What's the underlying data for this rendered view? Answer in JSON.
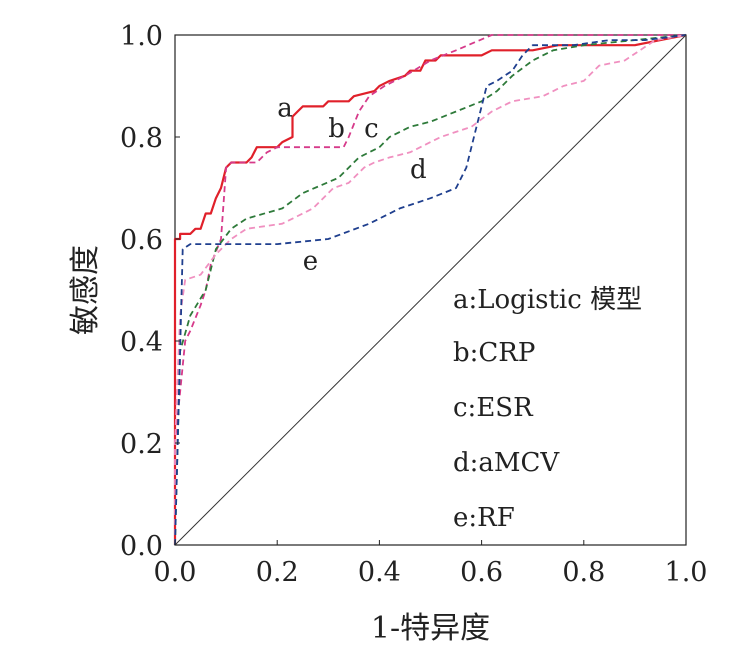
{
  "chart_data": {
    "type": "line",
    "xlabel": "1-特异度",
    "ylabel": "敏感度",
    "xlim": [
      0,
      1
    ],
    "ylim": [
      0,
      1
    ],
    "x_ticks": [
      "0.0",
      "0.2",
      "0.4",
      "0.6",
      "0.8",
      "1.0"
    ],
    "y_ticks": [
      "0.0",
      "0.2",
      "0.4",
      "0.6",
      "0.8",
      "1.0"
    ],
    "legend": [
      "a:Logistic 模型",
      "b:CRP",
      "c:ESR",
      "d:aMCV",
      "e:RF"
    ],
    "legend_position": "bottom-right",
    "series": [
      {
        "key": "a",
        "label": "a",
        "color": "#e0202a",
        "style": "solid",
        "points": [
          [
            0,
            0
          ],
          [
            0,
            0.6
          ],
          [
            0.01,
            0.6
          ],
          [
            0.01,
            0.61
          ],
          [
            0.03,
            0.61
          ],
          [
            0.04,
            0.62
          ],
          [
            0.05,
            0.62
          ],
          [
            0.06,
            0.65
          ],
          [
            0.07,
            0.65
          ],
          [
            0.08,
            0.68
          ],
          [
            0.09,
            0.7
          ],
          [
            0.1,
            0.74
          ],
          [
            0.11,
            0.75
          ],
          [
            0.14,
            0.75
          ],
          [
            0.15,
            0.76
          ],
          [
            0.16,
            0.78
          ],
          [
            0.2,
            0.78
          ],
          [
            0.21,
            0.79
          ],
          [
            0.23,
            0.8
          ],
          [
            0.23,
            0.84
          ],
          [
            0.24,
            0.85
          ],
          [
            0.25,
            0.86
          ],
          [
            0.29,
            0.86
          ],
          [
            0.3,
            0.87
          ],
          [
            0.34,
            0.87
          ],
          [
            0.35,
            0.88
          ],
          [
            0.39,
            0.89
          ],
          [
            0.4,
            0.9
          ],
          [
            0.42,
            0.91
          ],
          [
            0.45,
            0.92
          ],
          [
            0.46,
            0.93
          ],
          [
            0.48,
            0.93
          ],
          [
            0.49,
            0.95
          ],
          [
            0.51,
            0.95
          ],
          [
            0.52,
            0.96
          ],
          [
            0.6,
            0.96
          ],
          [
            0.62,
            0.97
          ],
          [
            0.7,
            0.97
          ],
          [
            0.75,
            0.98
          ],
          [
            0.9,
            0.98
          ],
          [
            0.95,
            0.99
          ],
          [
            1,
            1
          ]
        ]
      },
      {
        "key": "b",
        "label": "b",
        "color": "#d63a8a",
        "style": "dashed",
        "points": [
          [
            0,
            0
          ],
          [
            0,
            0.2
          ],
          [
            0.02,
            0.4
          ],
          [
            0.03,
            0.42
          ],
          [
            0.05,
            0.47
          ],
          [
            0.06,
            0.5
          ],
          [
            0.07,
            0.55
          ],
          [
            0.09,
            0.6
          ],
          [
            0.1,
            0.74
          ],
          [
            0.11,
            0.75
          ],
          [
            0.16,
            0.75
          ],
          [
            0.18,
            0.77
          ],
          [
            0.2,
            0.78
          ],
          [
            0.33,
            0.78
          ],
          [
            0.34,
            0.8
          ],
          [
            0.36,
            0.85
          ],
          [
            0.38,
            0.88
          ],
          [
            0.41,
            0.9
          ],
          [
            0.45,
            0.92
          ],
          [
            0.5,
            0.95
          ],
          [
            0.55,
            0.97
          ],
          [
            0.62,
            1
          ],
          [
            1,
            1
          ]
        ]
      },
      {
        "key": "c",
        "label": "c",
        "color": "#2e7a3a",
        "style": "dashed",
        "points": [
          [
            0,
            0
          ],
          [
            0.01,
            0.38
          ],
          [
            0.03,
            0.45
          ],
          [
            0.06,
            0.5
          ],
          [
            0.08,
            0.58
          ],
          [
            0.11,
            0.62
          ],
          [
            0.14,
            0.64
          ],
          [
            0.21,
            0.66
          ],
          [
            0.25,
            0.69
          ],
          [
            0.32,
            0.72
          ],
          [
            0.36,
            0.76
          ],
          [
            0.4,
            0.78
          ],
          [
            0.42,
            0.8
          ],
          [
            0.46,
            0.82
          ],
          [
            0.5,
            0.83
          ],
          [
            0.55,
            0.85
          ],
          [
            0.6,
            0.87
          ],
          [
            0.63,
            0.89
          ],
          [
            0.66,
            0.92
          ],
          [
            0.7,
            0.95
          ],
          [
            0.74,
            0.97
          ],
          [
            0.8,
            0.98
          ],
          [
            0.9,
            0.99
          ],
          [
            1,
            1
          ]
        ]
      },
      {
        "key": "d",
        "label": "d",
        "color": "#f090c0",
        "style": "dashed",
        "points": [
          [
            0,
            0
          ],
          [
            0,
            0.2
          ],
          [
            0.01,
            0.45
          ],
          [
            0.02,
            0.52
          ],
          [
            0.05,
            0.53
          ],
          [
            0.08,
            0.57
          ],
          [
            0.11,
            0.6
          ],
          [
            0.14,
            0.62
          ],
          [
            0.21,
            0.63
          ],
          [
            0.27,
            0.66
          ],
          [
            0.31,
            0.7
          ],
          [
            0.34,
            0.71
          ],
          [
            0.37,
            0.74
          ],
          [
            0.39,
            0.75
          ],
          [
            0.42,
            0.76
          ],
          [
            0.46,
            0.77
          ],
          [
            0.52,
            0.8
          ],
          [
            0.58,
            0.82
          ],
          [
            0.62,
            0.85
          ],
          [
            0.66,
            0.87
          ],
          [
            0.72,
            0.88
          ],
          [
            0.76,
            0.9
          ],
          [
            0.8,
            0.91
          ],
          [
            0.83,
            0.94
          ],
          [
            0.88,
            0.95
          ],
          [
            0.94,
            0.99
          ],
          [
            1,
            1
          ]
        ]
      },
      {
        "key": "e",
        "label": "e",
        "color": "#1f3f8e",
        "style": "dashed",
        "points": [
          [
            0,
            0
          ],
          [
            0.01,
            0.38
          ],
          [
            0.015,
            0.58
          ],
          [
            0.03,
            0.59
          ],
          [
            0.2,
            0.59
          ],
          [
            0.3,
            0.6
          ],
          [
            0.38,
            0.63
          ],
          [
            0.44,
            0.66
          ],
          [
            0.5,
            0.68
          ],
          [
            0.55,
            0.7
          ],
          [
            0.57,
            0.74
          ],
          [
            0.6,
            0.86
          ],
          [
            0.61,
            0.9
          ],
          [
            0.63,
            0.91
          ],
          [
            0.66,
            0.93
          ],
          [
            0.68,
            0.96
          ],
          [
            0.7,
            0.98
          ],
          [
            0.78,
            0.98
          ],
          [
            0.85,
            0.99
          ],
          [
            0.92,
            0.99
          ],
          [
            1,
            1
          ]
        ]
      },
      {
        "key": "ref",
        "label": "",
        "color": "#333333",
        "style": "solid",
        "points": [
          [
            0,
            0
          ],
          [
            1,
            1
          ]
        ]
      }
    ]
  }
}
